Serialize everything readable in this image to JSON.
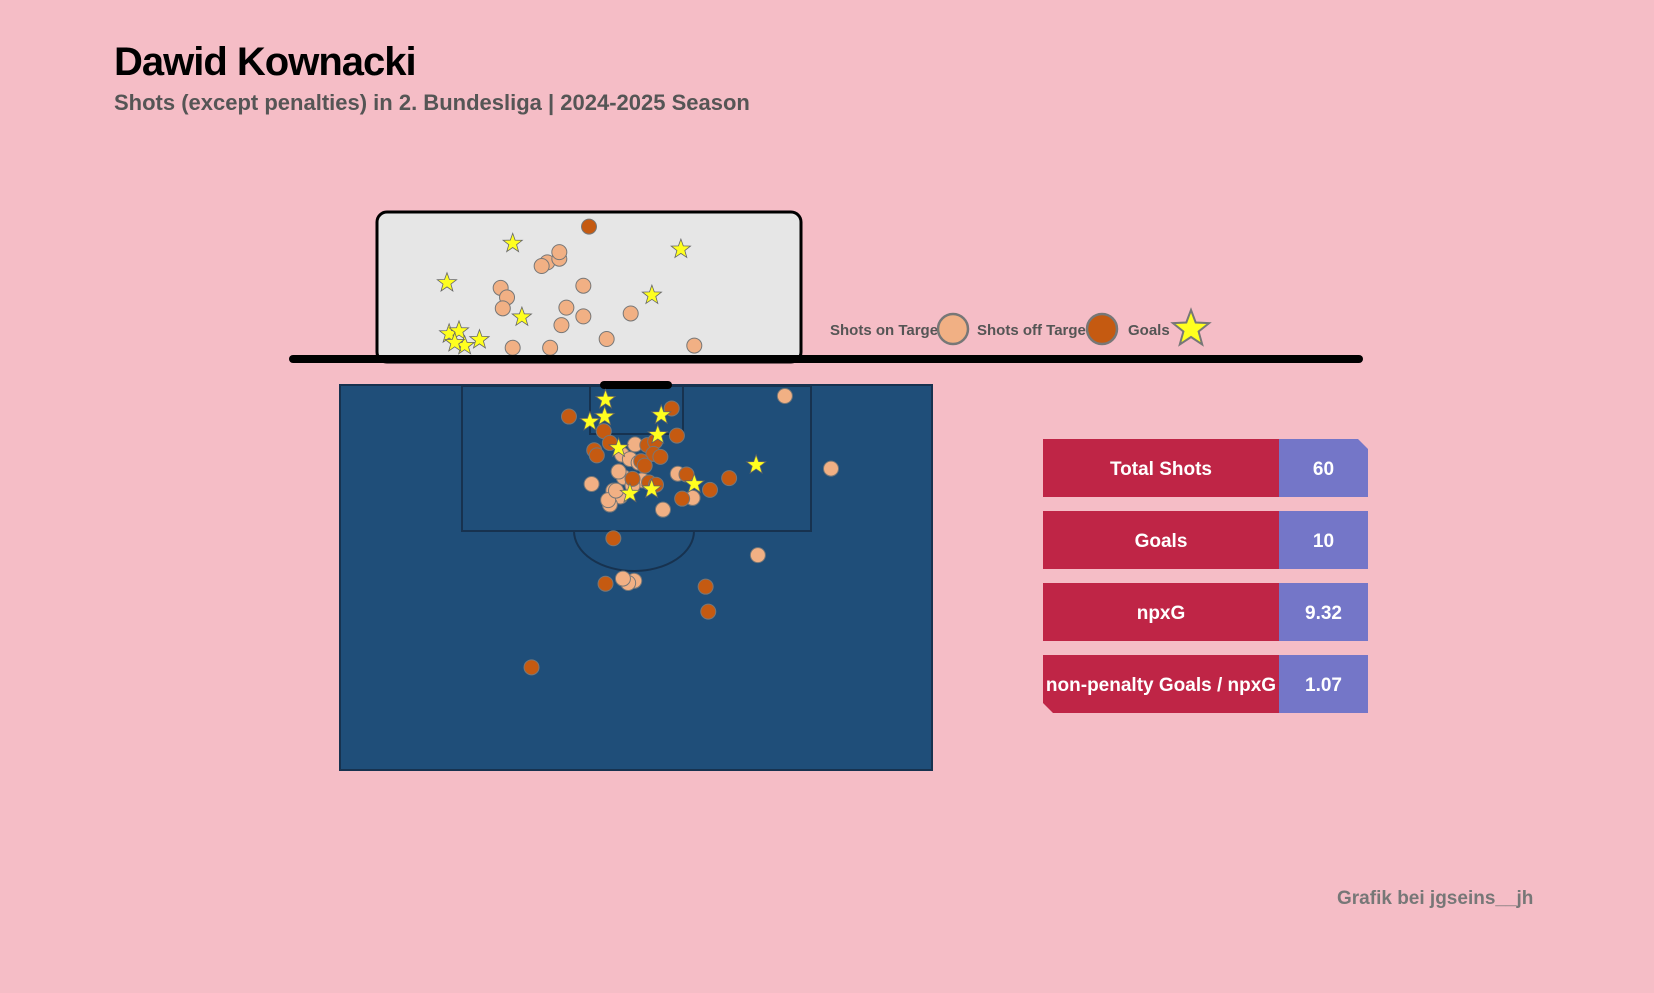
{
  "header": {
    "title": "Dawid Kownacki",
    "subtitle": "Shots (except penalties) in 2. Bundesliga | 2024-2025 Season"
  },
  "footer": {
    "credit": "Grafik bei jgseins__jh"
  },
  "legend": {
    "on_target_label": "Shots on Target",
    "off_target_label": "Shots off Target",
    "goal_label": "Goals"
  },
  "colors": {
    "background": "#f5bdc6",
    "pitch": "#1f4e79",
    "pitch_lines": "#17324f",
    "goal_face": "#e6e6e6",
    "on_target": "#f1b084",
    "off_target": "#c55a11",
    "goal": "#ffff1f",
    "stat_label_bg": "#bf2546",
    "stat_value_bg": "#7476c8"
  },
  "stats": [
    {
      "label": "Total Shots",
      "value": "60"
    },
    {
      "label": "Goals",
      "value": "10"
    },
    {
      "label": "npxG",
      "value": "9.32"
    },
    {
      "label": "non-penalty Goals / npxG",
      "value": "1.07"
    }
  ],
  "chart_data": [
    {
      "type": "scatter",
      "title": "Goal mouth shot placement",
      "xlabel": "",
      "ylabel": "",
      "xlim": [
        -30,
        30
      ],
      "ylim": [
        0,
        20
      ],
      "series": [
        {
          "name": "Shots on Target",
          "points": [
            [
              -12.5,
              9.6
            ],
            [
              -11.6,
              8.3
            ],
            [
              -12.2,
              6.8
            ],
            [
              -5.9,
              13.1
            ],
            [
              -6.7,
              12.6
            ],
            [
              -4.2,
              13.6
            ],
            [
              -4.2,
              14.5
            ],
            [
              -0.8,
              9.9
            ],
            [
              -3.2,
              6.9
            ],
            [
              -3.9,
              4.5
            ],
            [
              -0.8,
              5.7
            ],
            [
              2.5,
              2.6
            ],
            [
              5.9,
              6.1
            ],
            [
              -10.8,
              1.4
            ],
            [
              -5.5,
              1.4
            ],
            [
              14.9,
              1.7
            ]
          ]
        },
        {
          "name": "Shots off Target",
          "points": [
            [
              0,
              18.0
            ]
          ]
        },
        {
          "name": "Goals",
          "points": [
            [
              -10.8,
              15.7
            ],
            [
              -20.1,
              10.3
            ],
            [
              -19.8,
              3.3
            ],
            [
              -18.4,
              3.7
            ],
            [
              -17.6,
              1.7
            ],
            [
              -19.0,
              2.1
            ],
            [
              -15.5,
              2.5
            ],
            [
              -9.5,
              5.6
            ],
            [
              13.0,
              14.9
            ],
            [
              8.9,
              8.6
            ]
          ]
        }
      ]
    },
    {
      "type": "scatter",
      "title": "Shot locations on pitch",
      "xlabel": "",
      "ylabel": "",
      "xlim": [
        0,
        68
      ],
      "ylim": [
        0,
        52.5
      ],
      "series": [
        {
          "name": "Shots on Target",
          "points": [
            [
              51.1,
              1.5
            ],
            [
              56.4,
              11.4
            ],
            [
              48.0,
              23.2
            ],
            [
              32.4,
              9.5
            ],
            [
              33.3,
              10.1
            ],
            [
              34.3,
              10.6
            ],
            [
              32.6,
              12.6
            ],
            [
              32.0,
              11.8
            ],
            [
              34.7,
              13.0
            ],
            [
              31.4,
              14.4
            ],
            [
              28.9,
              13.5
            ],
            [
              32.2,
              15.2
            ],
            [
              31.0,
              16.3
            ],
            [
              30.8,
              15.7
            ],
            [
              38.8,
              12.1
            ],
            [
              40.5,
              15.4
            ],
            [
              37.1,
              17.0
            ],
            [
              33.6,
              13.7
            ],
            [
              33.9,
              8.1
            ],
            [
              31.7,
              14.4
            ],
            [
              33.8,
              26.7
            ],
            [
              33.1,
              27.0
            ],
            [
              32.5,
              26.4
            ]
          ]
        },
        {
          "name": "Shots off Target",
          "points": [
            [
              26.3,
              4.3
            ],
            [
              38.1,
              3.2
            ],
            [
              30.3,
              6.3
            ],
            [
              29.2,
              8.9
            ],
            [
              29.5,
              9.6
            ],
            [
              31.0,
              7.9
            ],
            [
              38.7,
              6.9
            ],
            [
              35.3,
              8.2
            ],
            [
              36.2,
              7.7
            ],
            [
              36.0,
              9.4
            ],
            [
              34.6,
              10.4
            ],
            [
              36.8,
              9.8
            ],
            [
              35.0,
              11.0
            ],
            [
              35.5,
              13.3
            ],
            [
              36.3,
              13.6
            ],
            [
              33.6,
              12.8
            ],
            [
              39.8,
              12.2
            ],
            [
              39.3,
              15.5
            ],
            [
              42.5,
              14.3
            ],
            [
              44.7,
              12.7
            ],
            [
              31.4,
              20.9
            ],
            [
              30.5,
              27.1
            ],
            [
              42.0,
              27.5
            ],
            [
              42.3,
              30.9
            ],
            [
              22.0,
              38.5
            ]
          ]
        },
        {
          "name": "Goals",
          "points": [
            [
              30.5,
              2.0
            ],
            [
              36.9,
              4.1
            ],
            [
              28.7,
              5.0
            ],
            [
              30.4,
              4.3
            ],
            [
              36.5,
              6.8
            ],
            [
              32.0,
              8.6
            ],
            [
              33.3,
              14.8
            ],
            [
              35.8,
              14.2
            ],
            [
              40.7,
              13.5
            ],
            [
              47.8,
              10.9
            ]
          ]
        }
      ]
    }
  ]
}
